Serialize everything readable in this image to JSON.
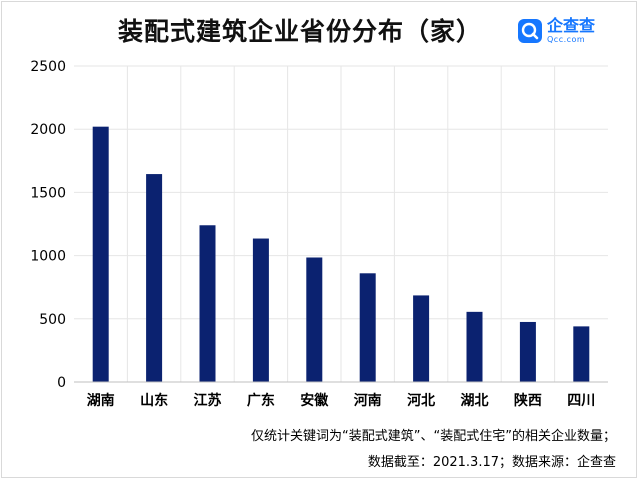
{
  "title": "装配式建筑企业省份分布（家）",
  "logo": {
    "name": "企查查",
    "domain": "Qcc.com"
  },
  "footnote": {
    "line1": "仅统计关键词为“装配式建筑”、“装配式住宅”的相关企业数量；",
    "line2": "数据截至：2021.3.17；数据来源：企查查"
  },
  "colors": {
    "bar": "#0b2270",
    "grid": "#e6e6e6",
    "brand": "#1677ff"
  },
  "chart_data": {
    "type": "bar",
    "categories": [
      "湖南",
      "山东",
      "江苏",
      "广东",
      "安徽",
      "河南",
      "河北",
      "湖北",
      "陕西",
      "四川"
    ],
    "values": [
      2020,
      1645,
      1240,
      1135,
      985,
      860,
      685,
      555,
      475,
      440
    ],
    "ylim": [
      0,
      2500
    ],
    "yticks": [
      0,
      500,
      1000,
      1500,
      2000,
      2500
    ],
    "grid": true,
    "legend": "none"
  }
}
